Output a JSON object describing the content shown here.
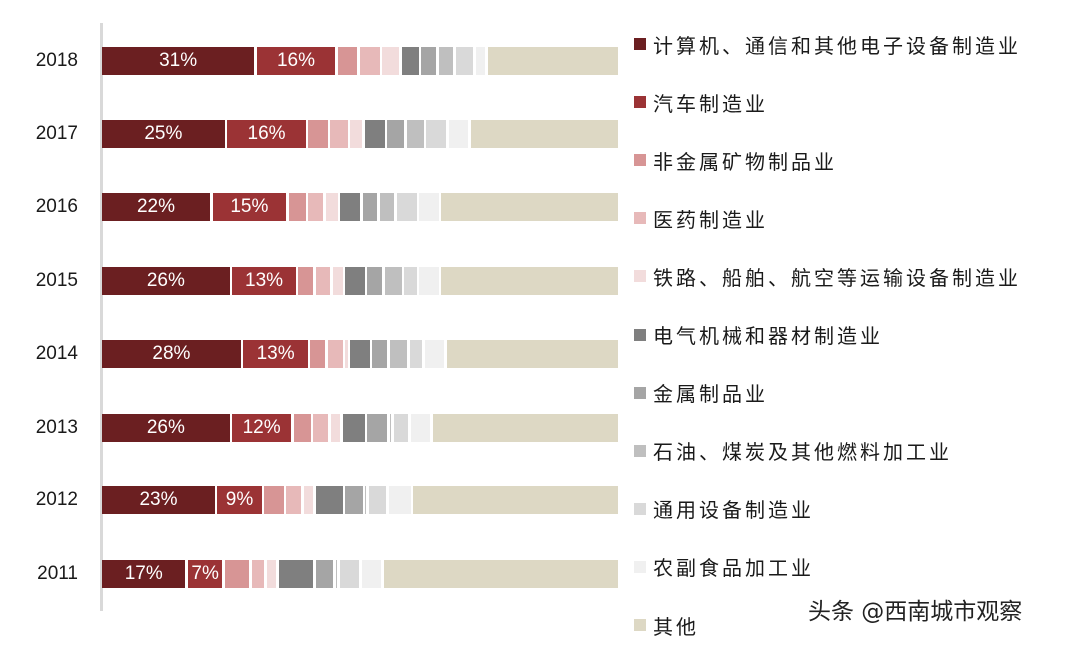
{
  "chart_data": {
    "type": "bar",
    "orientation": "horizontal",
    "stacked": true,
    "normalized_percent": true,
    "title": "",
    "xlabel": "",
    "ylabel": "",
    "categories": [
      "2018",
      "2017",
      "2016",
      "2015",
      "2014",
      "2013",
      "2012",
      "2011"
    ],
    "series": [
      {
        "name": "计算机、通信和其他电子设备制造业",
        "color": "#6b1f21",
        "values": [
          31,
          25,
          22,
          26,
          28,
          26,
          23,
          17
        ],
        "labels": [
          "31%",
          "25%",
          "22%",
          "26%",
          "28%",
          "26%",
          "23%",
          "17%"
        ]
      },
      {
        "name": "汽车制造业",
        "color": "#9b3335",
        "values": [
          16,
          16,
          15,
          13,
          13,
          12,
          9,
          7
        ],
        "labels": [
          "16%",
          "16%",
          "15%",
          "13%",
          "13%",
          "12%",
          "9%",
          "7%"
        ]
      },
      {
        "name": "非金属矿物制品业",
        "color": "#d79595",
        "values": [
          4,
          4,
          3.5,
          3,
          3,
          3.5,
          4,
          5
        ]
      },
      {
        "name": "医药制造业",
        "color": "#e7b9b9",
        "values": [
          4,
          3.5,
          3,
          3,
          3,
          3,
          3,
          2.5
        ]
      },
      {
        "name": "铁路、船舶、航空等运输设备制造业",
        "color": "#f2dcdc",
        "values": [
          3.5,
          2.5,
          2.5,
          2,
          0.5,
          2,
          2,
          2
        ]
      },
      {
        "name": "电气机械和器材制造业",
        "color": "#7f7f7f",
        "values": [
          3.5,
          4,
          4,
          4,
          4,
          4.5,
          5.5,
          7
        ]
      },
      {
        "name": "金属制品业",
        "color": "#a5a5a5",
        "values": [
          3,
          3.5,
          3,
          3,
          3,
          4,
          3.5,
          3.5
        ]
      },
      {
        "name": "石油、煤炭及其他燃料加工业",
        "color": "#bfbfbf",
        "values": [
          3,
          3.5,
          3,
          3.5,
          3.5,
          0.3,
          0.3,
          0.3
        ]
      },
      {
        "name": "通用设备制造业",
        "color": "#d9d9d9",
        "values": [
          3.5,
          4,
          4,
          2.5,
          2.5,
          3,
          3.5,
          4
        ]
      },
      {
        "name": "农副食品加工业",
        "color": "#f0f0f0",
        "values": [
          2,
          4,
          4,
          4,
          4,
          4,
          4.5,
          4
        ]
      },
      {
        "name": "其他",
        "color": "#ddd8c4",
        "values": [
          26.5,
          30,
          36,
          36,
          34.5,
          37.7,
          41.7,
          47.7
        ]
      }
    ],
    "xlim": [
      0,
      100
    ],
    "grid": false,
    "legend_position": "right"
  },
  "years": [
    "2018",
    "2017",
    "2016",
    "2015",
    "2014",
    "2013",
    "2012",
    "2011"
  ],
  "legend": [
    {
      "label": "计算机、通信和其他电子设备制造业",
      "color": "#6b1f21"
    },
    {
      "label": "汽车制造业",
      "color": "#9b3335"
    },
    {
      "label": "非金属矿物制品业",
      "color": "#d79595"
    },
    {
      "label": "医药制造业",
      "color": "#e7b9b9"
    },
    {
      "label": "铁路、船舶、航空等运输设备制造业",
      "color": "#f2dcdc"
    },
    {
      "label": "电气机械和器材制造业",
      "color": "#7f7f7f"
    },
    {
      "label": "金属制品业",
      "color": "#a5a5a5"
    },
    {
      "label": "石油、煤炭及其他燃料加工业",
      "color": "#bfbfbf"
    },
    {
      "label": "通用设备制造业",
      "color": "#d9d9d9"
    },
    {
      "label": "农副食品加工业",
      "color": "#f0f0f0"
    },
    {
      "label": "其他",
      "color": "#ddd8c4"
    }
  ],
  "watermark": "头条 @西南城市观察"
}
